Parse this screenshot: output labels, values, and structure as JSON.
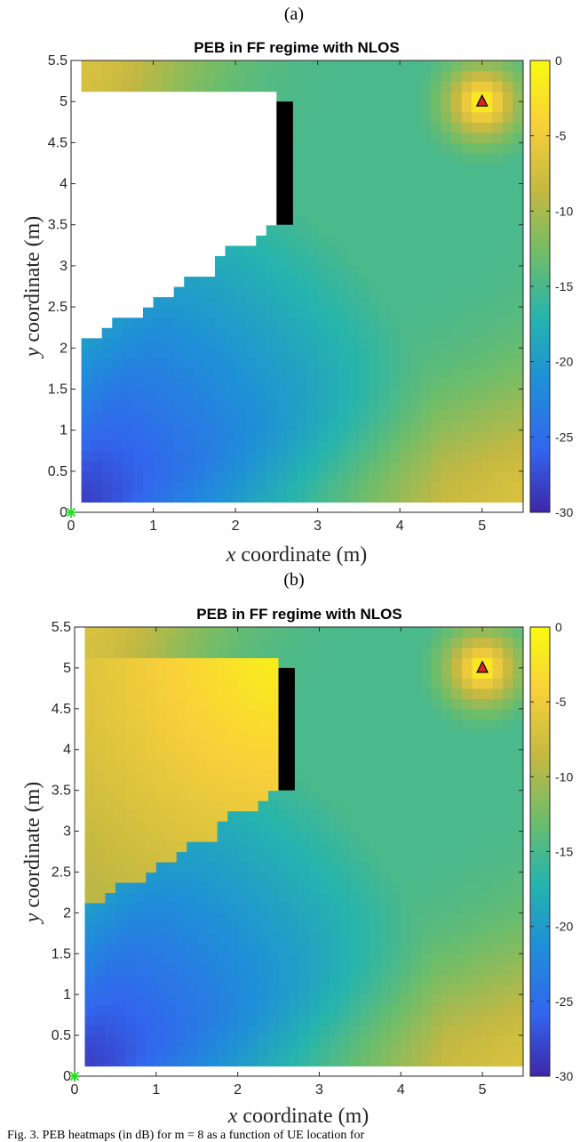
{
  "caption": "Fig. 3.  PEB heatmaps (in dB) for m = 8 as a function of UE location for",
  "colors": {
    "obstacle": "#000000",
    "anchor_fill": "#d62728",
    "origin_marker": "#22dd22"
  },
  "colormap": "parula",
  "chart_data": [
    {
      "type": "heatmap",
      "panel_label": "(a)",
      "title": "PEB in FF regime with NLOS",
      "xlabel_var": "x",
      "xlabel_text": " coordinate (m)",
      "ylabel_var": "y",
      "ylabel_text": " coordinate (m)",
      "xlim": [
        0,
        5.5
      ],
      "ylim": [
        0,
        5.5
      ],
      "xticks": [
        "0",
        "1",
        "2",
        "3",
        "4",
        "5"
      ],
      "yticks": [
        "0",
        "0.5",
        "1",
        "1.5",
        "2",
        "2.5",
        "3",
        "3.5",
        "4",
        "4.5",
        "5",
        "5.5"
      ],
      "colorbar_ticks": [
        "0",
        "-5",
        "-10",
        "-15",
        "-20",
        "-25",
        "-30"
      ],
      "clim": [
        -30,
        0
      ],
      "anchor": [
        5,
        5
      ],
      "origin_marker": [
        0,
        0
      ],
      "obstacle": {
        "x": [
          2.5,
          2.7
        ],
        "y": [
          3.5,
          5.0
        ]
      },
      "shadow_mode": "blank"
    },
    {
      "type": "heatmap",
      "panel_label": "(b)",
      "title": "PEB in FF regime with NLOS",
      "xlabel_var": "x",
      "xlabel_text": " coordinate (m)",
      "ylabel_var": "y",
      "ylabel_text": " coordinate (m)",
      "xlim": [
        0,
        5.5
      ],
      "ylim": [
        0,
        5.5
      ],
      "xticks": [
        "0",
        "1",
        "2",
        "3",
        "4",
        "5"
      ],
      "yticks": [
        "0",
        "0.5",
        "1",
        "1.5",
        "2",
        "2.5",
        "3",
        "3.5",
        "4",
        "4.5",
        "5",
        "5.5"
      ],
      "colorbar_ticks": [
        "0",
        "-5",
        "-10",
        "-15",
        "-20",
        "-25",
        "-30"
      ],
      "clim": [
        -30,
        0
      ],
      "anchor": [
        5,
        5
      ],
      "origin_marker": [
        0,
        0
      ],
      "obstacle": {
        "x": [
          2.5,
          2.7
        ],
        "y": [
          3.5,
          5.0
        ]
      },
      "shadow_mode": "high"
    }
  ]
}
